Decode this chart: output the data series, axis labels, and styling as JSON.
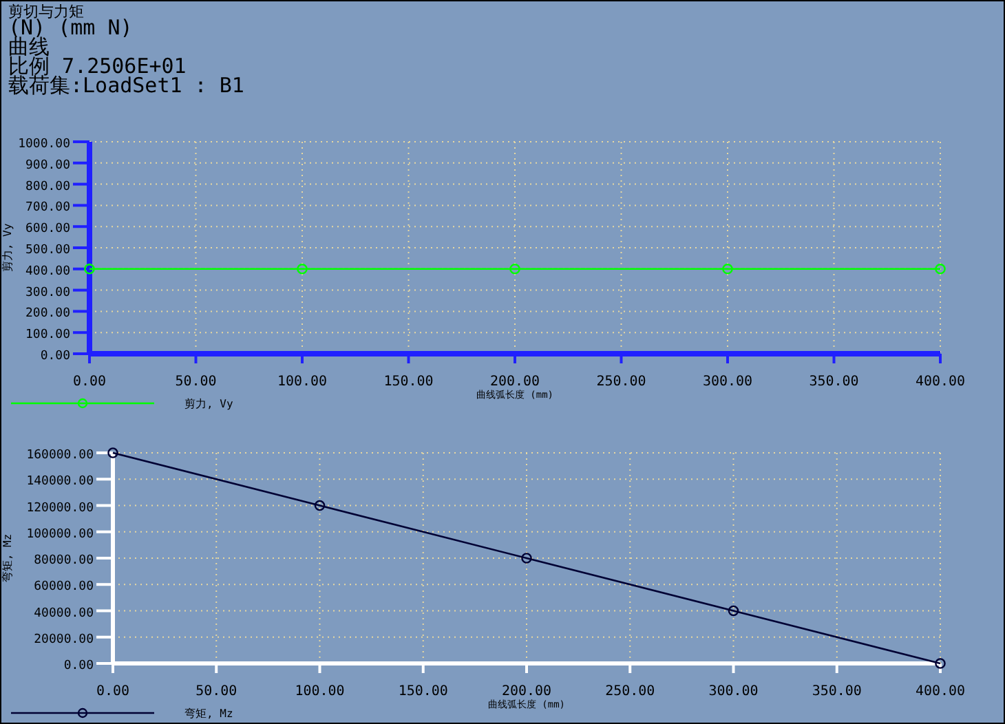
{
  "chart_data": [
    {
      "type": "line",
      "title": "剪切与力矩",
      "annotations": [
        "(N)   (mm N)",
        "曲线",
        "比例  7.2506E+01",
        "载荷集:LoadSet1 :  B1"
      ],
      "xlabel": "曲线弧长度 (mm)",
      "ylabel": "剪力, Vy",
      "x": [
        0,
        100,
        200,
        300,
        400
      ],
      "series": [
        {
          "name": "剪力, Vy",
          "color": "#00ff00",
          "values": [
            400,
            400,
            400,
            400,
            400
          ]
        }
      ],
      "xlim": [
        0,
        400
      ],
      "ylim": [
        0,
        1000
      ],
      "xticks": [
        {
          "value": 0,
          "label": "0.00"
        },
        {
          "value": 50,
          "label": "50.00"
        },
        {
          "value": 100,
          "label": "100.00"
        },
        {
          "value": 150,
          "label": "150.00"
        },
        {
          "value": 200,
          "label": "200.00"
        },
        {
          "value": 250,
          "label": "250.00"
        },
        {
          "value": 300,
          "label": "300.00"
        },
        {
          "value": 350,
          "label": "350.00"
        },
        {
          "value": 400,
          "label": "400.00"
        }
      ],
      "yticks": [
        {
          "value": 0,
          "label": "0.00"
        },
        {
          "value": 100,
          "label": "100.00"
        },
        {
          "value": 200,
          "label": "200.00"
        },
        {
          "value": 300,
          "label": "300.00"
        },
        {
          "value": 400,
          "label": "400.00"
        },
        {
          "value": 500,
          "label": "500.00"
        },
        {
          "value": 600,
          "label": "600.00"
        },
        {
          "value": 700,
          "label": "700.00"
        },
        {
          "value": 800,
          "label": "800.00"
        },
        {
          "value": 900,
          "label": "900.00"
        },
        {
          "value": 1000,
          "label": "1000.00"
        }
      ],
      "grid": true,
      "legend": "bottom",
      "marker": "circle",
      "line_style": "solid"
    },
    {
      "type": "line",
      "xlabel": "曲线弧长度 (mm)",
      "ylabel": "弯矩, Mz",
      "x": [
        0,
        100,
        200,
        300,
        400
      ],
      "series": [
        {
          "name": "弯矩, Mz",
          "color": "#000033",
          "values": [
            160000,
            120000,
            80000,
            40000,
            0
          ]
        }
      ],
      "xlim": [
        0,
        400
      ],
      "ylim": [
        0,
        160000
      ],
      "xticks": [
        {
          "value": 0,
          "label": "0.00"
        },
        {
          "value": 50,
          "label": "50.00"
        },
        {
          "value": 100,
          "label": "100.00"
        },
        {
          "value": 150,
          "label": "150.00"
        },
        {
          "value": 200,
          "label": "200.00"
        },
        {
          "value": 250,
          "label": "250.00"
        },
        {
          "value": 300,
          "label": "300.00"
        },
        {
          "value": 350,
          "label": "350.00"
        },
        {
          "value": 400,
          "label": "400.00"
        }
      ],
      "yticks": [
        {
          "value": 0,
          "label": "0.00"
        },
        {
          "value": 20000,
          "label": "20000.00"
        },
        {
          "value": 40000,
          "label": "40000.00"
        },
        {
          "value": 60000,
          "label": "60000.00"
        },
        {
          "value": 80000,
          "label": "80000.00"
        },
        {
          "value": 100000,
          "label": "100000.00"
        },
        {
          "value": 120000,
          "label": "120000.00"
        },
        {
          "value": 140000,
          "label": "140000.00"
        },
        {
          "value": 160000,
          "label": "160000.00"
        }
      ],
      "grid": true,
      "legend": "bottom",
      "marker": "circle",
      "line_style": "solid"
    }
  ]
}
